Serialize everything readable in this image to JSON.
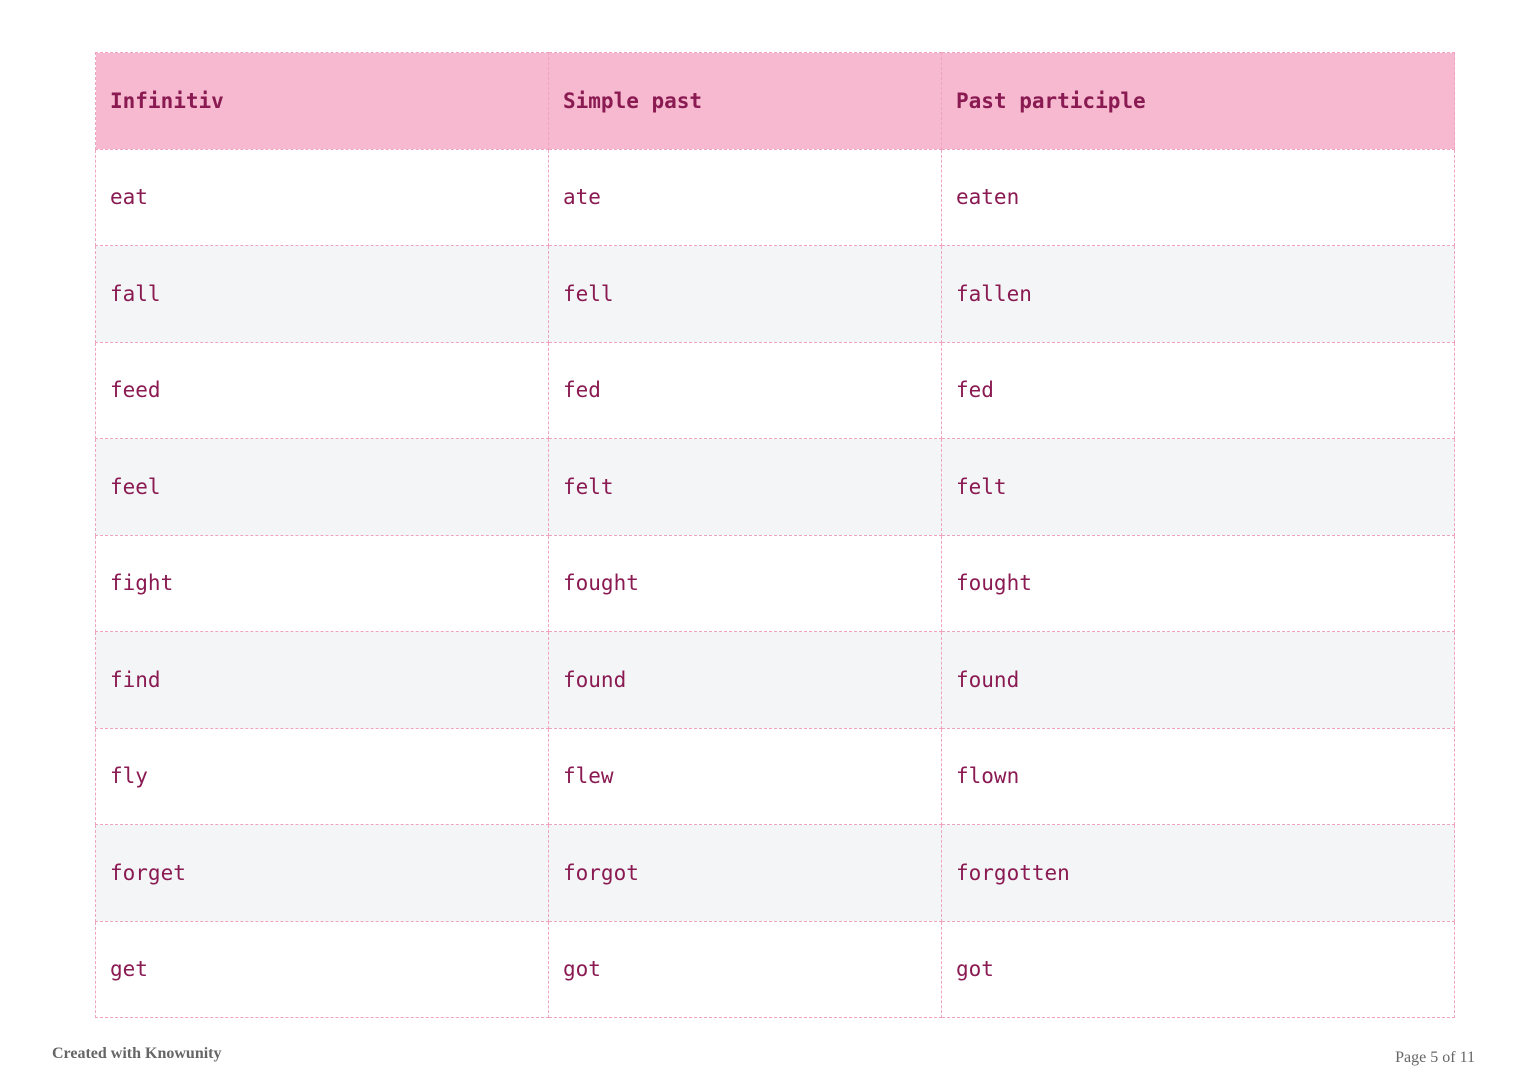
{
  "table": {
    "headers": [
      "Infinitiv",
      "Simple past",
      "Past participle"
    ],
    "rows": [
      [
        "eat",
        "ate",
        "eaten"
      ],
      [
        "fall",
        "fell",
        "fallen"
      ],
      [
        "feed",
        "fed",
        "fed"
      ],
      [
        "feel",
        "felt",
        "felt"
      ],
      [
        "fight",
        "fought",
        "fought"
      ],
      [
        "find",
        "found",
        "found"
      ],
      [
        "fly",
        "flew",
        "flown"
      ],
      [
        "forget",
        "forgot",
        "forgotten"
      ],
      [
        "get",
        "got",
        "got"
      ]
    ]
  },
  "footer": {
    "created": "Created with Knowunity",
    "page": "Page 5 of 11"
  },
  "colors": {
    "header_bg": "#f6b9cf",
    "text": "#8a1a52",
    "border": "#f0a3bf",
    "alt_row": "#f4f5f7"
  }
}
